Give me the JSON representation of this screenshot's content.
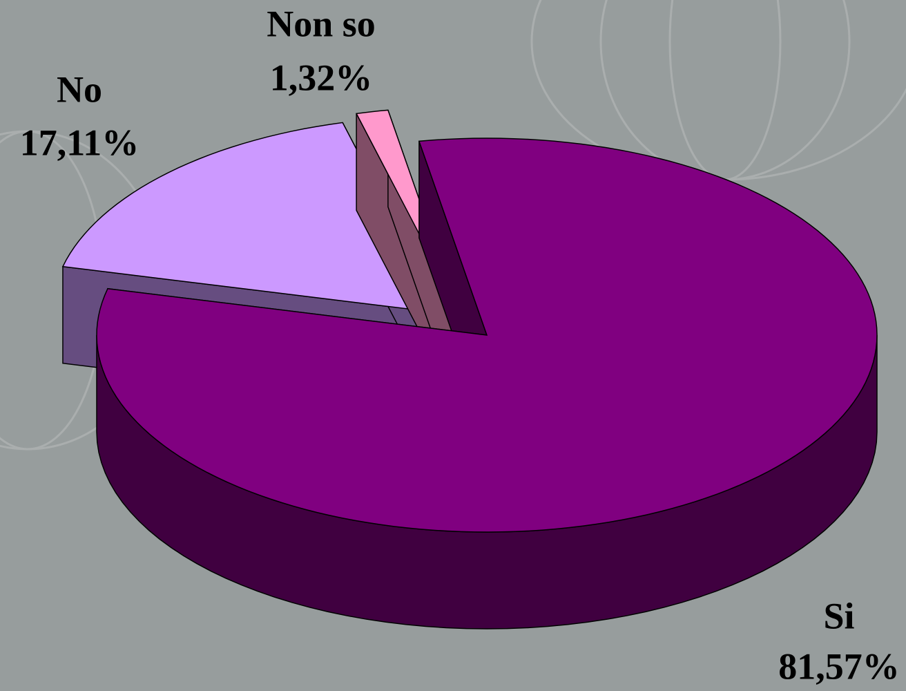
{
  "chart_data": {
    "type": "pie",
    "categories": [
      "Si",
      "No",
      "Non so"
    ],
    "values": [
      81.57,
      17.11,
      1.32
    ],
    "value_labels": [
      "81,57%",
      "17,11%",
      "1,32%"
    ],
    "colors": [
      "#800080",
      "#cc99ff",
      "#ff99cc"
    ]
  }
}
